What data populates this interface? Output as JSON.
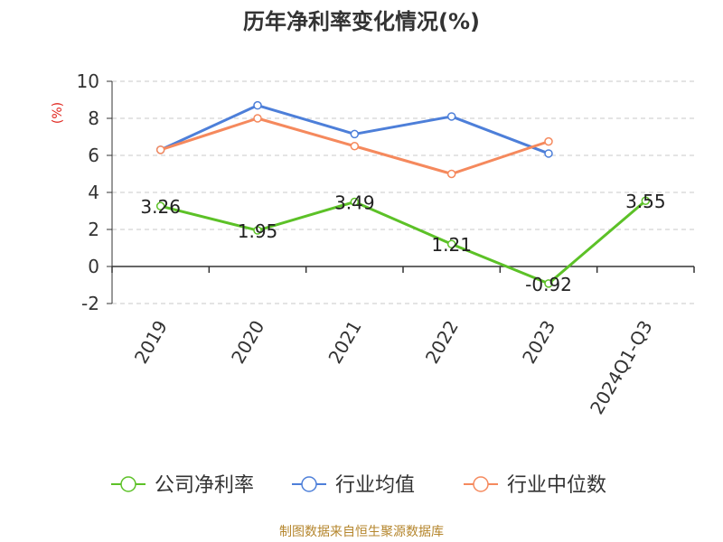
{
  "chart_data": {
    "type": "line",
    "title": "历年净利率变化情况(%)",
    "ylabel": "(%)",
    "ylim": [
      -2,
      10
    ],
    "yticks": [
      -2,
      0,
      2,
      4,
      6,
      8,
      10
    ],
    "grid": true,
    "legend_position": "bottom",
    "categories": [
      "2019",
      "2020",
      "2021",
      "2022",
      "2023",
      "2024Q1-Q3"
    ],
    "series": [
      {
        "name": "公司净利率",
        "color": "#5cc127",
        "show_labels": true,
        "values": [
          3.26,
          1.95,
          3.49,
          1.21,
          -0.92,
          3.55
        ]
      },
      {
        "name": "行业均值",
        "color": "#4d7fd9",
        "show_labels": false,
        "values": [
          6.3,
          8.7,
          7.15,
          8.1,
          6.1,
          null
        ]
      },
      {
        "name": "行业中位数",
        "color": "#f5895d",
        "show_labels": false,
        "values": [
          6.3,
          8.0,
          6.5,
          5.0,
          6.75,
          null
        ]
      }
    ]
  },
  "source_text": "制图数据来自恒生聚源数据库"
}
